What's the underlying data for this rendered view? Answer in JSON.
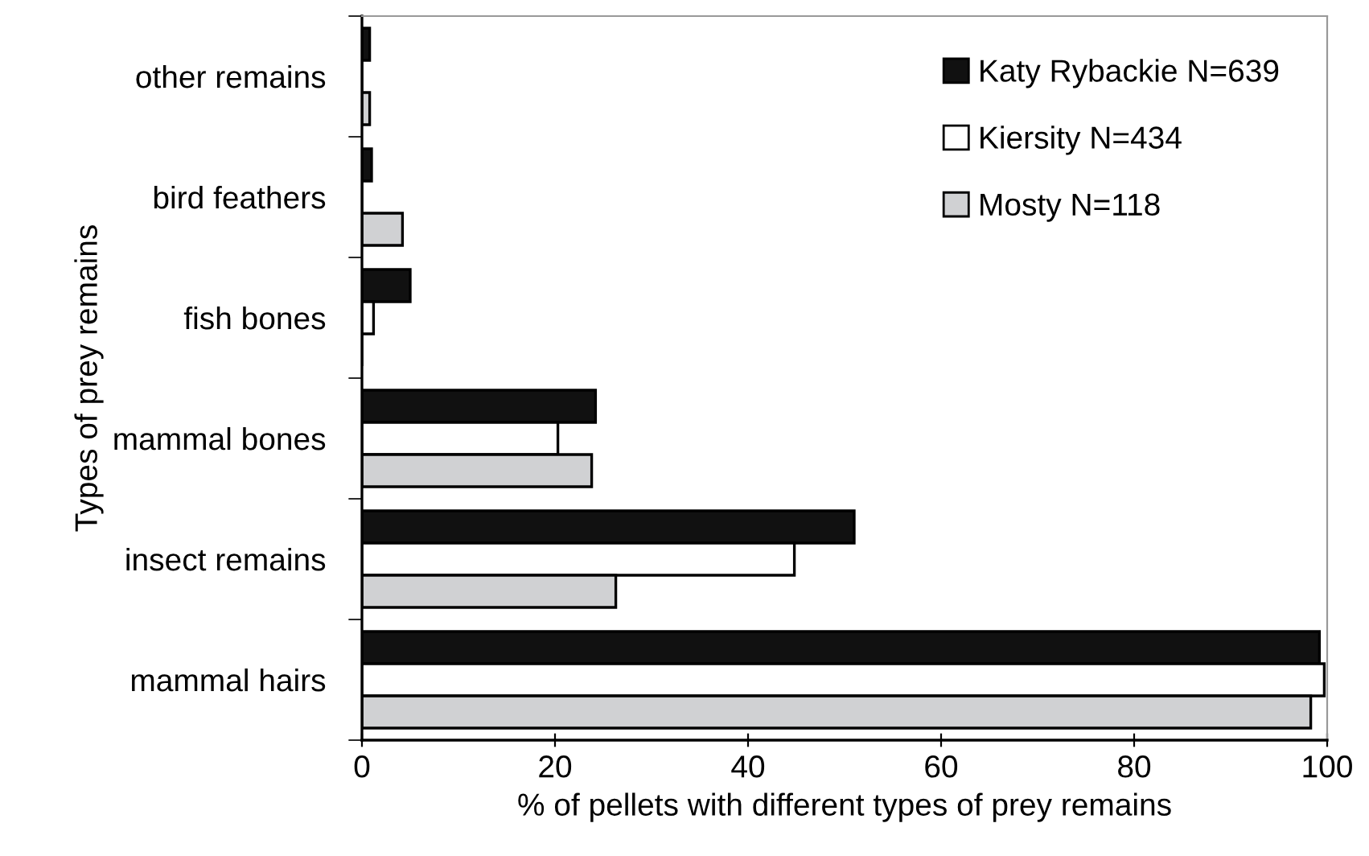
{
  "chart_data": {
    "type": "bar",
    "orientation": "horizontal",
    "xlabel": "% of pellets with different types of prey remains",
    "ylabel": "Types of prey remains",
    "categories": [
      "other remains",
      "bird feathers",
      "fish bones",
      "mammal bones",
      "insect remains",
      "mammal hairs"
    ],
    "series": [
      {
        "name": "Katy Rybackie N=639",
        "color": "#111111",
        "values": [
          0.8,
          1.0,
          5.0,
          24.2,
          51.0,
          99.2
        ]
      },
      {
        "name": "Kiersity N=434",
        "color": "#ffffff",
        "values": [
          0,
          0,
          1.2,
          20.3,
          44.8,
          99.7
        ]
      },
      {
        "name": "Mosty N=118",
        "color": "#d0d1d3",
        "values": [
          0.8,
          4.2,
          0,
          23.8,
          26.3,
          98.3
        ]
      }
    ],
    "xlim": [
      0,
      100
    ],
    "xticks": [
      0,
      20,
      40,
      60,
      80,
      100
    ],
    "grid": false,
    "legend": "top right"
  }
}
